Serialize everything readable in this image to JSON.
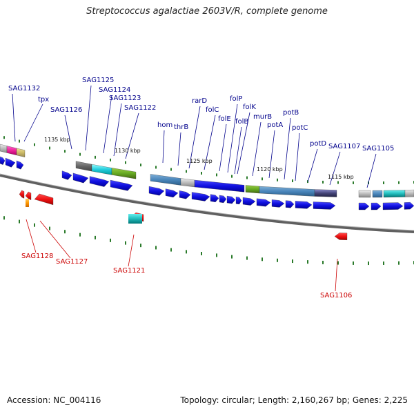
{
  "title": "Streptococcus agalactiae 2603V/R, complete genome",
  "footer": {
    "accession": "Accession: NC_004116",
    "summary": "Topology: circular; Length: 2,160,267 bp; Genes: 2,225"
  },
  "colors": {
    "forward_label": "#00008b",
    "reverse_label": "#cc0000",
    "forward_gene": "#1010e0",
    "reverse_gene": "#ee1111",
    "backbone": "#707070",
    "tick": "#2a7a2a"
  },
  "scale_labels": [
    {
      "id": "kbp-1135",
      "text": "1135 kbp"
    },
    {
      "id": "kbp-1130",
      "text": "1130 kbp"
    },
    {
      "id": "kbp-1125",
      "text": "1125 kbp"
    },
    {
      "id": "kbp-1120",
      "text": "1120 kbp"
    },
    {
      "id": "kbp-1115",
      "text": "1115 kbp"
    }
  ],
  "forward_labels": [
    {
      "id": "sag1132",
      "text": "SAG1132"
    },
    {
      "id": "tpx",
      "text": "tpx"
    },
    {
      "id": "sag1125",
      "text": "SAG1125"
    },
    {
      "id": "sag1124",
      "text": "SAG1124"
    },
    {
      "id": "sag1123",
      "text": "SAG1123"
    },
    {
      "id": "sag1126",
      "text": "SAG1126"
    },
    {
      "id": "sag1122",
      "text": "SAG1122"
    },
    {
      "id": "hom",
      "text": "hom"
    },
    {
      "id": "thrb",
      "text": "thrB"
    },
    {
      "id": "rard",
      "text": "rarD"
    },
    {
      "id": "folc",
      "text": "folC"
    },
    {
      "id": "fole",
      "text": "folE"
    },
    {
      "id": "folp",
      "text": "folP"
    },
    {
      "id": "folk",
      "text": "folK"
    },
    {
      "id": "folb",
      "text": "folB"
    },
    {
      "id": "murb",
      "text": "murB"
    },
    {
      "id": "pota",
      "text": "potA"
    },
    {
      "id": "potb",
      "text": "potB"
    },
    {
      "id": "potc",
      "text": "potC"
    },
    {
      "id": "potd",
      "text": "potD"
    },
    {
      "id": "sag1107",
      "text": "SAG1107"
    },
    {
      "id": "sag1105",
      "text": "SAG1105"
    }
  ],
  "reverse_labels": [
    {
      "id": "sag1128",
      "text": "SAG1128"
    },
    {
      "id": "sag1127",
      "text": "SAG1127"
    },
    {
      "id": "sag1121",
      "text": "SAG1121"
    },
    {
      "id": "sag1106",
      "text": "SAG1106"
    }
  ]
}
